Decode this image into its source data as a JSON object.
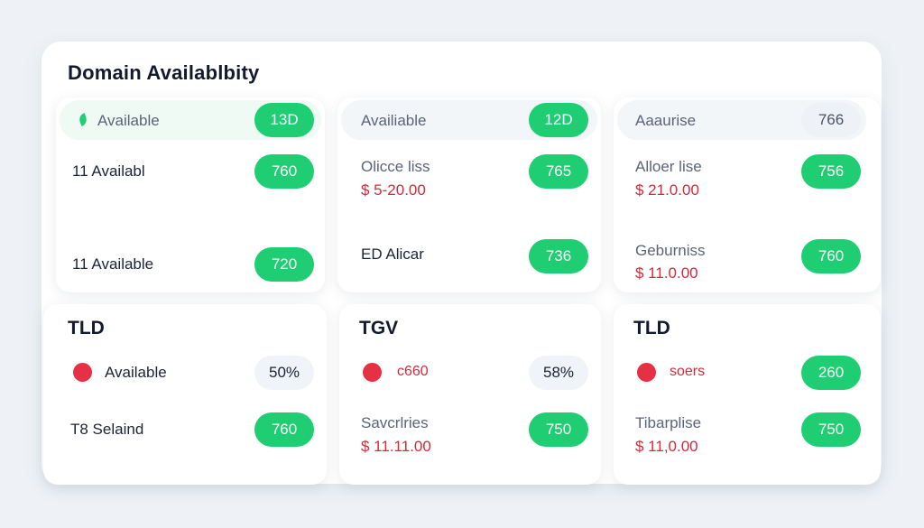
{
  "title": "Domain Availablbity",
  "colors": {
    "accent_green": "#1fce72",
    "price_red": "#d42a3a",
    "dot_red": "#e63046"
  },
  "top_cards": [
    {
      "header": {
        "label": "Available",
        "badge": "13D"
      },
      "rows": [
        {
          "label": "11  Availabl",
          "badge": "760"
        },
        {
          "label": "11  Available",
          "badge": "720"
        }
      ]
    },
    {
      "header": {
        "label": "Availiable",
        "badge": "12D"
      },
      "rows": [
        {
          "label": "Olicce liss",
          "price": "$  5-20.00",
          "badge": "765"
        },
        {
          "label": "ED Alicar",
          "badge": "736"
        }
      ]
    },
    {
      "header": {
        "label": "Aaaurise",
        "badge": "766"
      },
      "rows": [
        {
          "label": "Alloer lise",
          "price": "$  21.0.00",
          "badge": "756"
        },
        {
          "label": "Geburniss",
          "price": "$  11.0.00",
          "badge": "760"
        }
      ]
    }
  ],
  "bottom_cards": [
    {
      "heading": "TLD",
      "status": {
        "label": "Available",
        "badge": "50%"
      },
      "row": {
        "label": "T8  Selaind",
        "badge": "760"
      }
    },
    {
      "heading": "TGV",
      "status": {
        "label": "c660",
        "badge": "58%"
      },
      "row": {
        "label": "Savcrlries",
        "price": "$  11.11.00",
        "badge": "750"
      }
    },
    {
      "heading": "TLD",
      "status": {
        "label": "soers",
        "badge": "260"
      },
      "row": {
        "label": "Tibarplise",
        "price": "$  11,0.00",
        "badge": "750"
      }
    }
  ]
}
